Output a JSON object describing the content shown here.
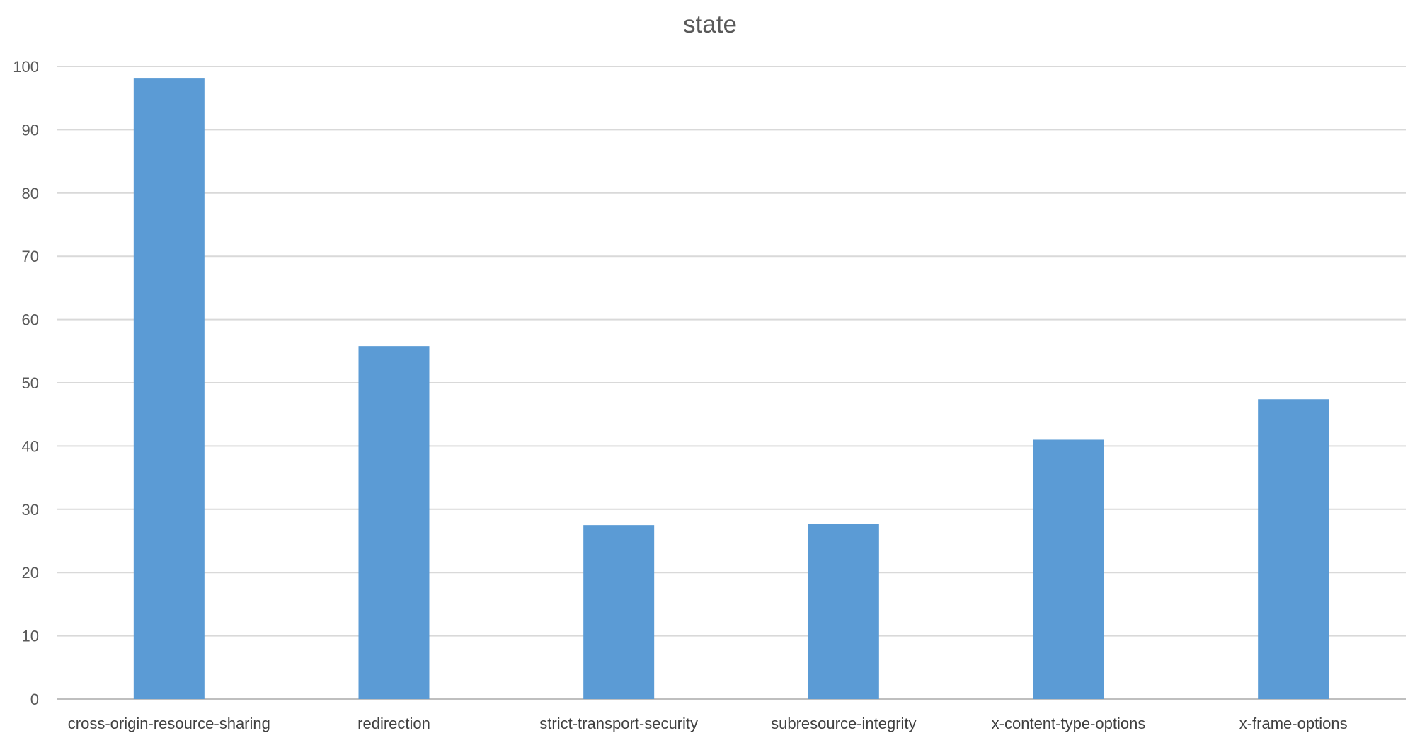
{
  "chart_data": {
    "type": "bar",
    "title": "state",
    "xlabel": "",
    "ylabel": "",
    "categories": [
      "cross-origin-resource-sharing",
      "redirection",
      "strict-transport-security",
      "subresource-integrity",
      "x-content-type-options",
      "x-frame-options"
    ],
    "values": [
      98.2,
      55.8,
      27.5,
      27.7,
      41.0,
      47.4
    ],
    "ylim": [
      0,
      100
    ],
    "yticks": [
      0,
      10,
      20,
      30,
      40,
      50,
      60,
      70,
      80,
      90,
      100
    ],
    "grid": true,
    "legend": "none",
    "bar_color": "#5b9bd5"
  }
}
